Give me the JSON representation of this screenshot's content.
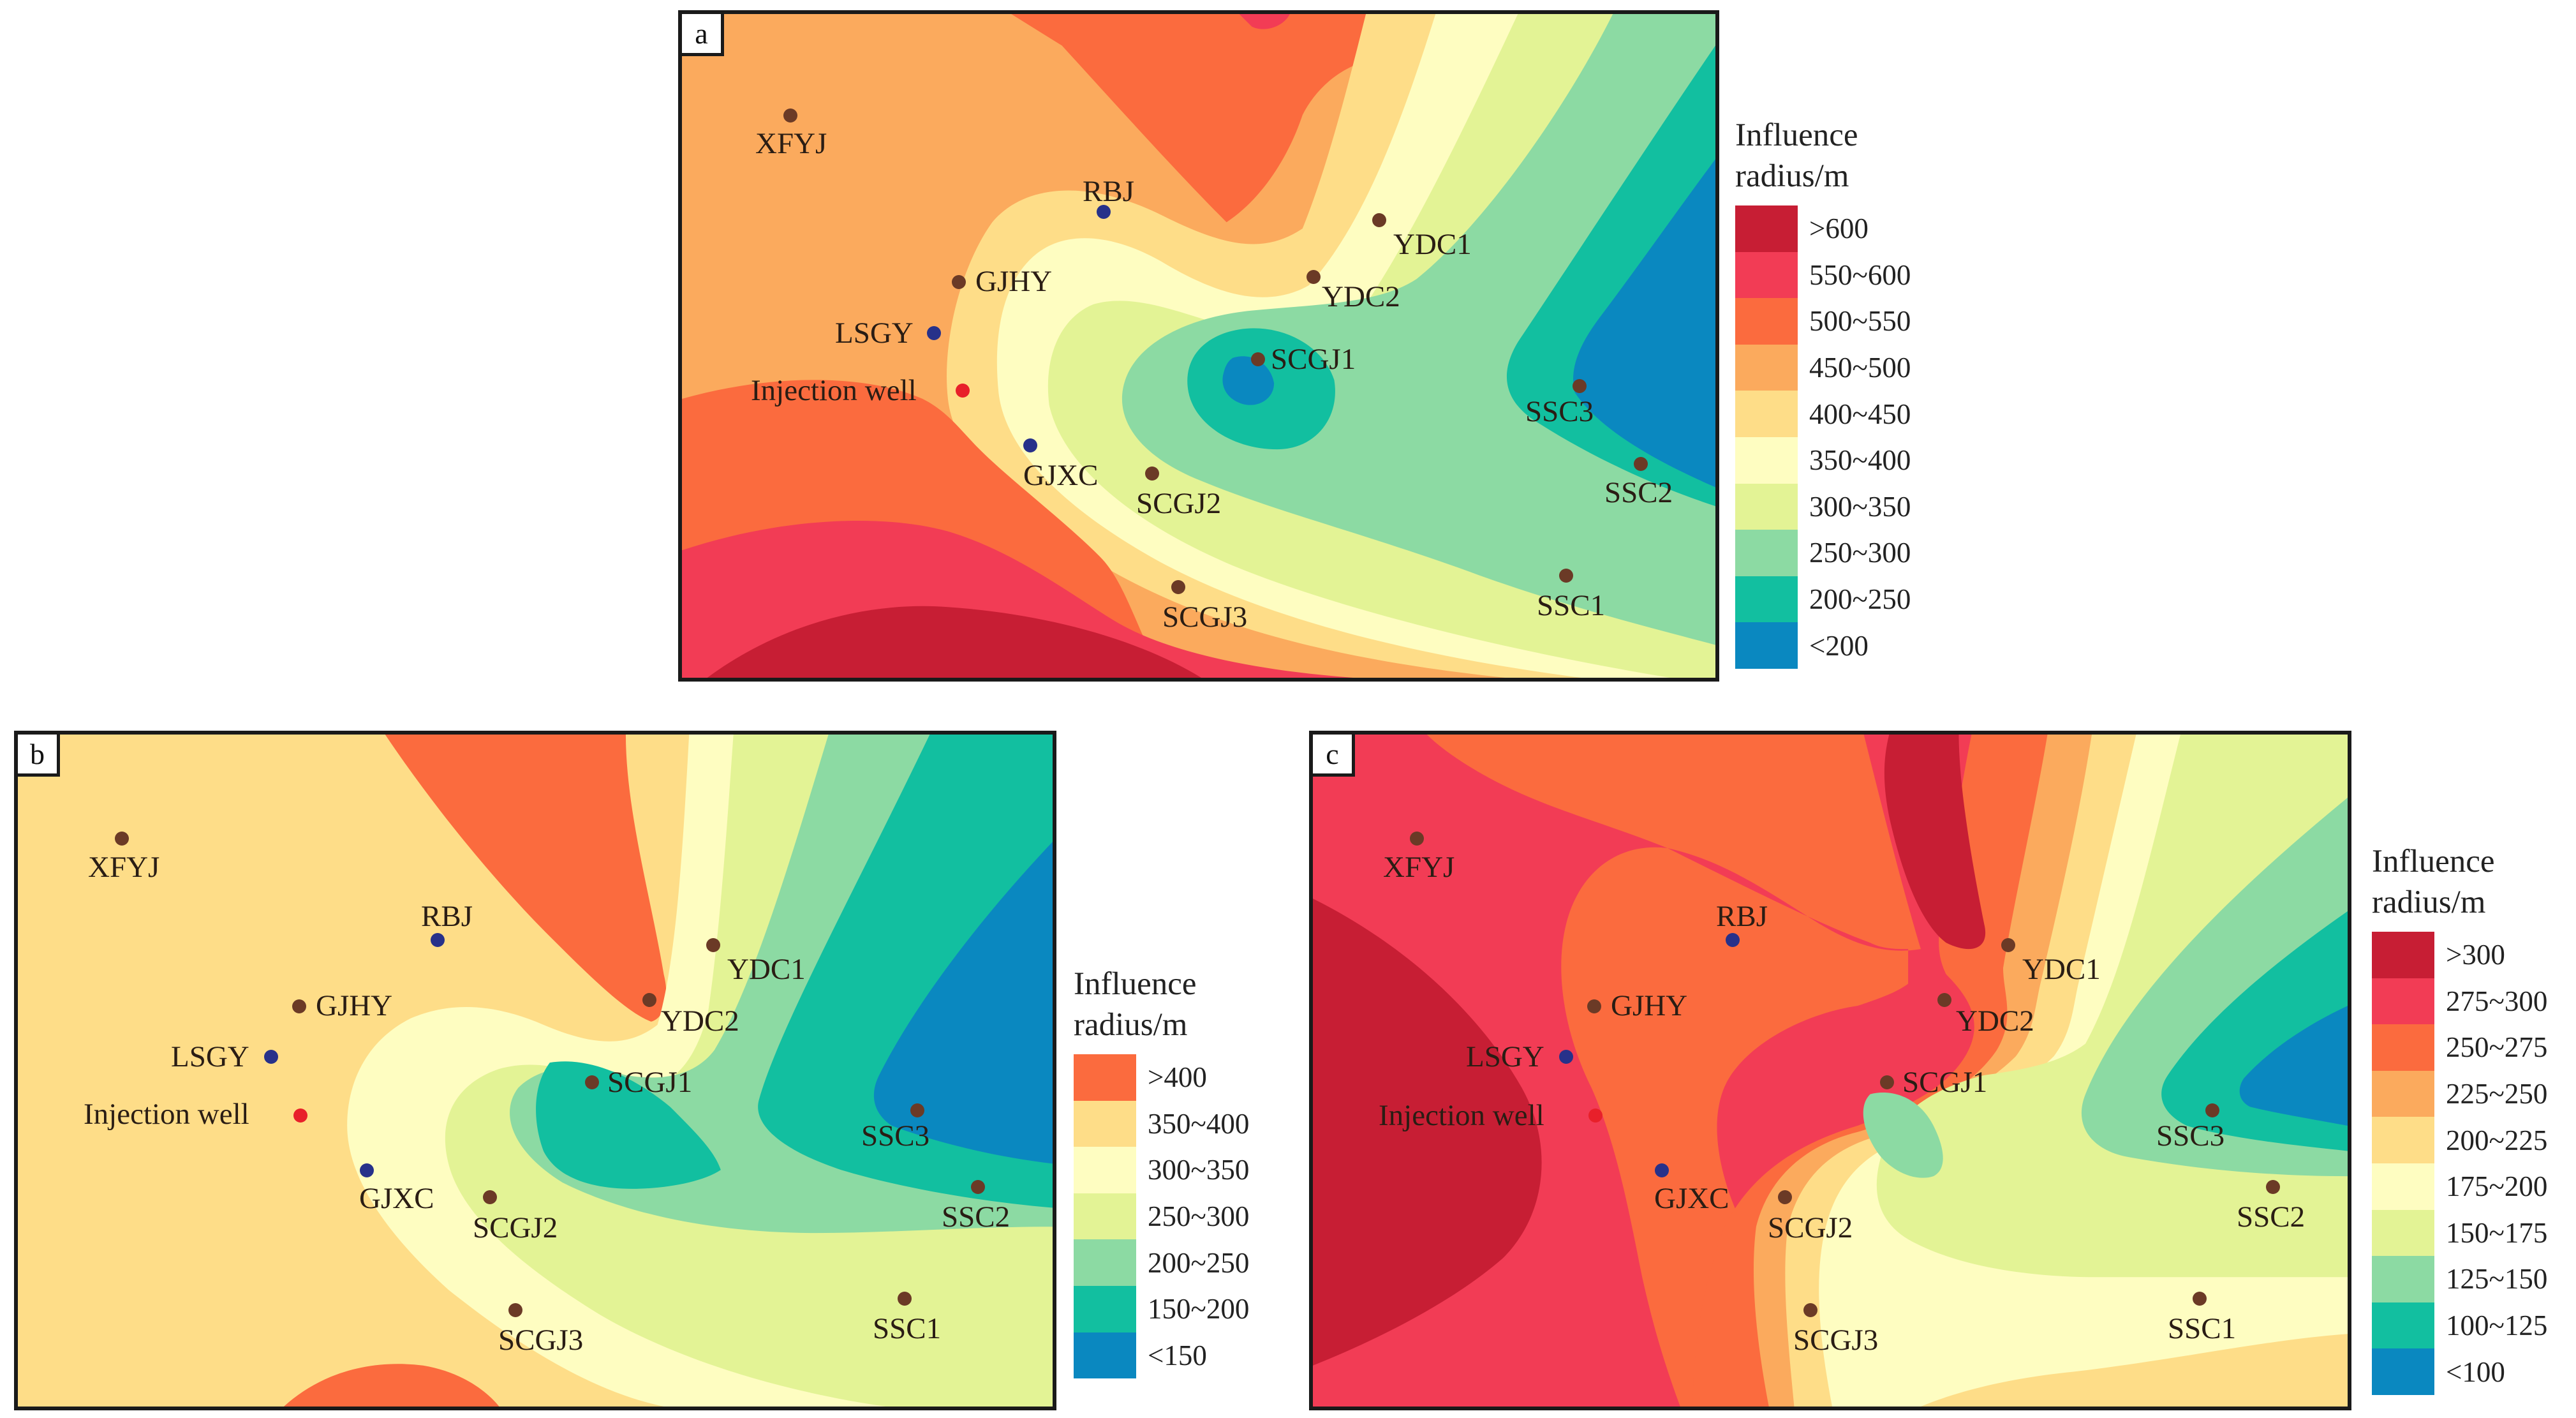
{
  "panels": [
    {
      "id": "a",
      "tag": "a",
      "legend_title_1": "Influence",
      "legend_title_2": "radius/m",
      "legend": [
        {
          "label": ">600",
          "color": "#c71e34"
        },
        {
          "label": "550~600",
          "color": "#f23c55"
        },
        {
          "label": "500~550",
          "color": "#fb6b3e"
        },
        {
          "label": "450~500",
          "color": "#fbaa5d"
        },
        {
          "label": "400~450",
          "color": "#fedd88"
        },
        {
          "label": "350~400",
          "color": "#fefdc1"
        },
        {
          "label": "300~350",
          "color": "#e3f395"
        },
        {
          "label": "250~300",
          "color": "#8cdaa3"
        },
        {
          "label": "200~250",
          "color": "#12bfa0"
        },
        {
          "label": "<200",
          "color": "#0a88c0"
        }
      ]
    },
    {
      "id": "b",
      "tag": "b",
      "legend_title_1": "Influence",
      "legend_title_2": "radius/m",
      "legend": [
        {
          "label": ">400",
          "color": "#fb6b3e"
        },
        {
          "label": "350~400",
          "color": "#fedd88"
        },
        {
          "label": "300~350",
          "color": "#fefdc1"
        },
        {
          "label": "250~300",
          "color": "#e3f395"
        },
        {
          "label": "200~250",
          "color": "#8cdaa3"
        },
        {
          "label": "150~200",
          "color": "#12bfa0"
        },
        {
          "label": "<150",
          "color": "#0a88c0"
        }
      ]
    },
    {
      "id": "c",
      "tag": "c",
      "legend_title_1": "Influence",
      "legend_title_2": "radius/m",
      "legend": [
        {
          "label": ">300",
          "color": "#c71e34"
        },
        {
          "label": "275~300",
          "color": "#f23c55"
        },
        {
          "label": "250~275",
          "color": "#fb6b3e"
        },
        {
          "label": "225~250",
          "color": "#fbaa5d"
        },
        {
          "label": "200~225",
          "color": "#fedd88"
        },
        {
          "label": "175~200",
          "color": "#fefdc1"
        },
        {
          "label": "150~175",
          "color": "#e3f395"
        },
        {
          "label": "125~150",
          "color": "#8cdaa3"
        },
        {
          "label": "100~125",
          "color": "#12bfa0"
        },
        {
          "label": "<100",
          "color": "#0a88c0"
        }
      ]
    }
  ],
  "wells": [
    {
      "name": "XFYJ",
      "type": "production",
      "color": "#6b3a26"
    },
    {
      "name": "RBJ",
      "type": "monitoring",
      "color": "#27318a"
    },
    {
      "name": "GJHY",
      "type": "production",
      "color": "#6b3a26"
    },
    {
      "name": "LSGY",
      "type": "monitoring",
      "color": "#27318a"
    },
    {
      "name": "Injection well",
      "type": "injection",
      "color": "#e8202a"
    },
    {
      "name": "GJXC",
      "type": "monitoring",
      "color": "#27318a"
    },
    {
      "name": "YDC1",
      "type": "production",
      "color": "#6b3a26"
    },
    {
      "name": "YDC2",
      "type": "production",
      "color": "#6b3a26"
    },
    {
      "name": "SCGJ1",
      "type": "production",
      "color": "#6b3a26"
    },
    {
      "name": "SCGJ2",
      "type": "production",
      "color": "#6b3a26"
    },
    {
      "name": "SCGJ3",
      "type": "production",
      "color": "#6b3a26"
    },
    {
      "name": "SSC3",
      "type": "production",
      "color": "#6b3a26"
    },
    {
      "name": "SSC2",
      "type": "production",
      "color": "#6b3a26"
    },
    {
      "name": "SSC1",
      "type": "production",
      "color": "#6b3a26"
    }
  ]
}
